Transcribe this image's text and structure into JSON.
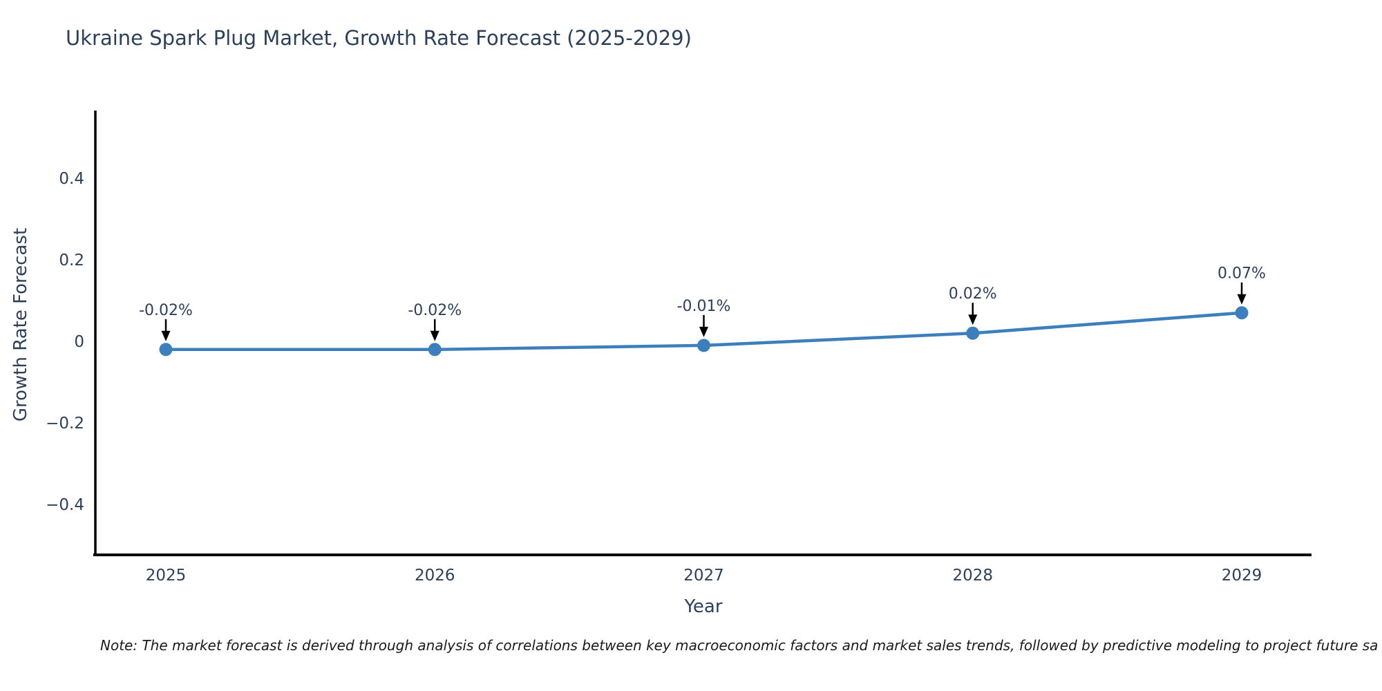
{
  "chart": {
    "title": "Ukraine Spark Plug Market, Growth Rate Forecast (2025-2029)",
    "note": "Note: The market forecast is derived through analysis of correlations between key macroeconomic factors and market sales trends, followed by predictive modeling to project future sa",
    "colors": {
      "line": "#3d7ebd",
      "marker": "#3d7ebd",
      "text": "#2e3f58",
      "axis": "#000000",
      "arrow": "#000000"
    }
  },
  "chart_data": {
    "type": "line",
    "title": "Ukraine Spark Plug Market, Growth Rate Forecast (2025-2029)",
    "xlabel": "Year",
    "ylabel": "Growth Rate Forecast",
    "x": [
      2025,
      2026,
      2027,
      2028,
      2029
    ],
    "values": [
      -0.02,
      -0.02,
      -0.01,
      0.02,
      0.07
    ],
    "point_labels": [
      "-0.02%",
      "-0.02%",
      "-0.01%",
      "0.02%",
      "0.07%"
    ],
    "xtick_labels": [
      "2025",
      "2026",
      "2027",
      "2028",
      "2029"
    ],
    "yticks": [
      0.4,
      0.2,
      0,
      -0.2,
      -0.4
    ],
    "ytick_labels": [
      "0.4",
      "0.2",
      "0",
      "−0.2",
      "−0.4"
    ],
    "ylim": [
      -0.52,
      0.57
    ],
    "grid": false,
    "legend": null,
    "marker": "circle",
    "annotation_style": "value labels with downward arrows above each point"
  }
}
